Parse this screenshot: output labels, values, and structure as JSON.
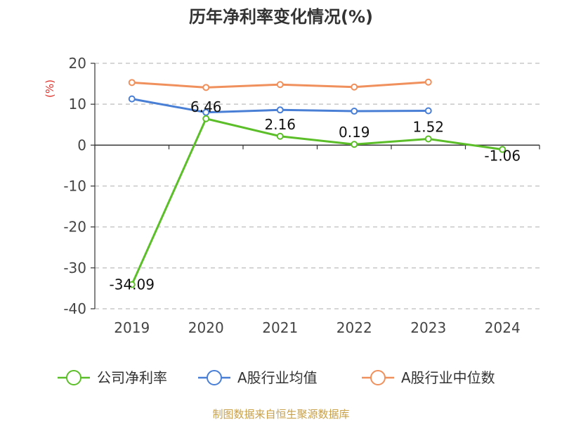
{
  "chart_data": {
    "type": "line",
    "title": "历年净利率变化情况(%)",
    "ylabel": "(%)",
    "xlabel": "",
    "categories": [
      "2019",
      "2020",
      "2021",
      "2022",
      "2023",
      "2024"
    ],
    "ylim": [
      -40,
      20
    ],
    "yticks": [
      20,
      10,
      0,
      -10,
      -20,
      -30,
      -40
    ],
    "grid": "horizontal-dashed",
    "legend_position": "bottom",
    "series": [
      {
        "name": "公司净利率",
        "color": "#5cbf2a",
        "values": [
          -34.09,
          6.46,
          2.16,
          0.19,
          1.52,
          -1.06
        ],
        "data_labels": [
          "-34.09",
          "6.46",
          "2.16",
          "0.19",
          "1.52",
          "-1.06"
        ]
      },
      {
        "name": "A股行业均值",
        "color": "#4a7fd6",
        "values": [
          11.3,
          8.0,
          8.6,
          8.3,
          8.4,
          null
        ]
      },
      {
        "name": "A股行业中位数",
        "color": "#f0915d",
        "values": [
          15.3,
          14.1,
          14.8,
          14.2,
          15.4,
          null
        ]
      }
    ]
  },
  "footer": "制图数据来自恒生聚源数据库"
}
